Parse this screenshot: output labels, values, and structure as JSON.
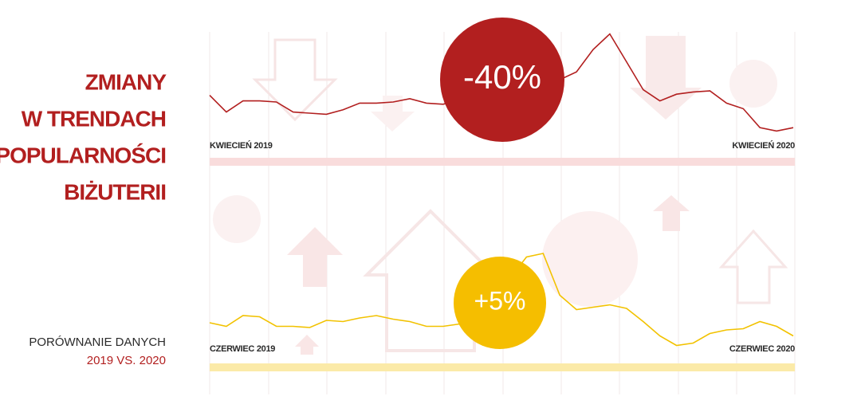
{
  "header": {
    "title_lines": [
      "ZMIANY",
      "W TRENDACH",
      "POPULARNOŚCI",
      "BIŻUTERII"
    ],
    "subtitle_lines": [
      "PORÓWNANIE DANYCH",
      "2019 VS. 2020"
    ]
  },
  "chart_data": [
    {
      "type": "line",
      "color": "#b21f1f",
      "band_color": "#f9dcdc",
      "annotation": "-40%",
      "annotation_color": "#b21f1f",
      "ylim": [
        0,
        100
      ],
      "x": [
        "KWIECIEŃ 2019",
        null,
        null,
        null,
        null,
        null,
        null,
        null,
        null,
        null,
        null,
        null,
        null,
        null,
        null,
        null,
        null,
        null,
        null,
        null,
        null,
        null,
        null,
        null,
        null,
        null,
        null,
        null,
        null,
        null,
        null,
        null,
        null,
        null,
        null,
        "KWIECIEŃ 2020"
      ],
      "values": [
        36,
        21,
        31,
        31,
        30,
        21,
        20,
        19,
        23,
        29,
        29,
        30,
        33,
        29,
        28,
        32,
        37,
        41,
        44,
        46,
        47,
        50,
        57,
        77,
        91,
        66,
        41,
        31,
        37,
        39,
        40,
        29,
        24,
        7,
        4,
        7
      ]
    },
    {
      "type": "line",
      "color": "#f2c200",
      "band_color": "#fbeaa8",
      "annotation": "+5%",
      "annotation_color": "#f5be00",
      "ylim": [
        0,
        100
      ],
      "x": [
        "CZERWIEC 2019",
        null,
        null,
        null,
        null,
        null,
        null,
        null,
        null,
        null,
        null,
        null,
        null,
        null,
        null,
        null,
        null,
        null,
        null,
        null,
        null,
        null,
        null,
        null,
        null,
        null,
        null,
        null,
        null,
        null,
        null,
        null,
        null,
        null,
        null,
        "CZERWIEC 2020"
      ],
      "values": [
        30,
        27,
        36,
        35,
        27,
        27,
        26,
        32,
        31,
        34,
        36,
        33,
        31,
        27,
        27,
        29,
        37,
        47,
        67,
        85,
        88,
        53,
        41,
        43,
        45,
        42,
        31,
        19,
        11,
        13,
        21,
        24,
        25,
        31,
        27,
        19
      ]
    }
  ]
}
